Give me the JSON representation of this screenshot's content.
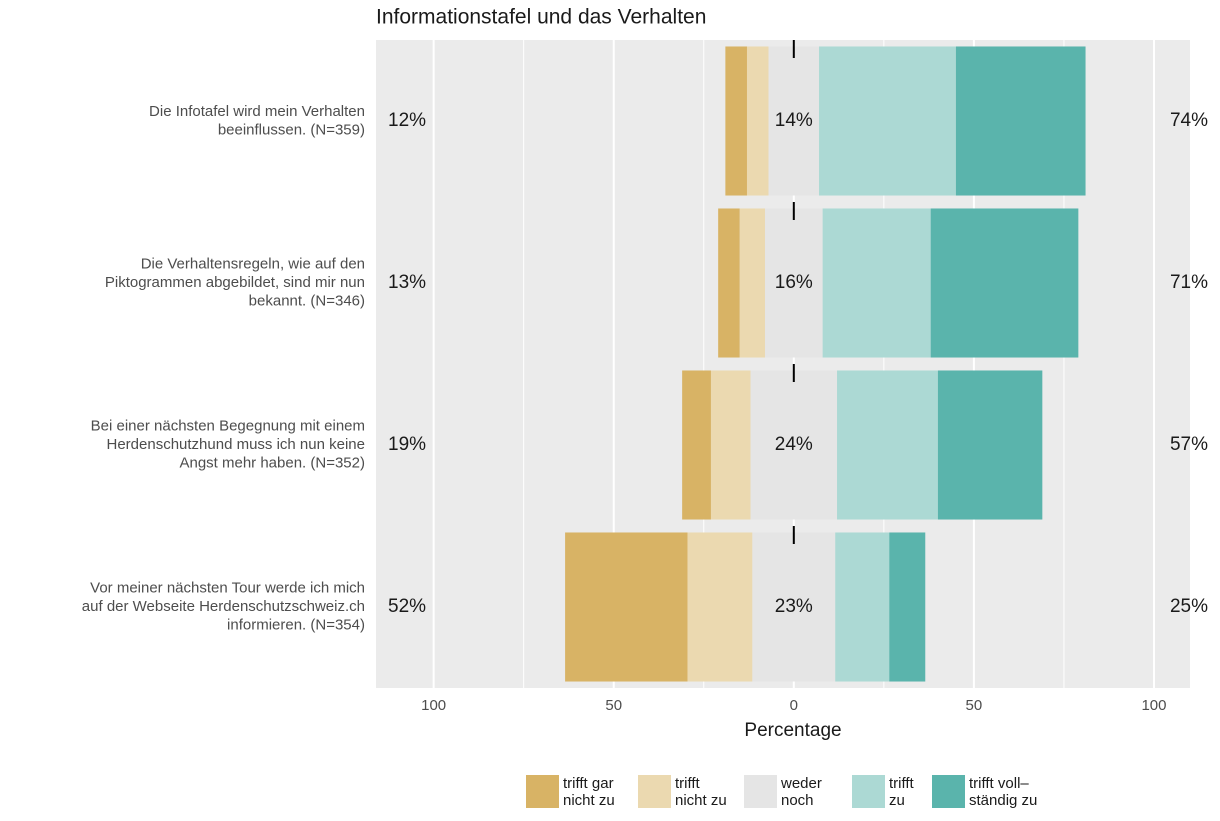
{
  "chart_data": {
    "type": "diverging_bar",
    "title": "Informationstafel und das Verhalten",
    "xlabel": "Percentage",
    "categories": [
      [
        "Die Infotafel wird mein Verhalten",
        "beeinflussen. (N=359)"
      ],
      [
        "Die Verhaltensregeln, wie auf den",
        "Piktogrammen abgebildet, sind mir nun",
        "bekannt. (N=346)"
      ],
      [
        "Bei einer nächsten Begegnung mit einem",
        "Herdenschutzhund muss ich nun keine",
        "Angst mehr haben. (N=352)"
      ],
      [
        "Vor meiner nächsten Tour werde ich mich",
        "auf der Webseite Herdenschutzschweiz.ch",
        "informieren. (N=354)"
      ]
    ],
    "series": [
      {
        "name": "trifft gar\nnicht zu",
        "color": "#d8b365",
        "values": [
          6,
          6,
          8,
          34
        ]
      },
      {
        "name": "trifft\nnicht zu",
        "color": "#ebd9b0",
        "values": [
          6,
          7,
          11,
          18
        ]
      },
      {
        "name": "weder\nnoch",
        "color": "#e5e5e5",
        "values": [
          14,
          16,
          24,
          23
        ],
        "value_labels": [
          "14%",
          "16%",
          "24%",
          "23%"
        ]
      },
      {
        "name": "trifft\nzu",
        "color": "#acd9d4",
        "values": [
          38,
          30,
          28,
          15
        ]
      },
      {
        "name": "trifft voll–\nständig zu",
        "color": "#5ab4ac",
        "values": [
          36,
          41,
          29,
          10
        ]
      }
    ],
    "left_totals": [
      "12%",
      "13%",
      "19%",
      "52%"
    ],
    "right_totals": [
      "74%",
      "71%",
      "57%",
      "25%"
    ],
    "xlim": [
      -116,
      110
    ],
    "xticks": [
      {
        "value": -100,
        "label": "100"
      },
      {
        "value": -50,
        "label": "50"
      },
      0,
      50,
      100
    ],
    "minor_xticks": [
      -75,
      -25,
      25,
      75
    ],
    "grid": true
  }
}
